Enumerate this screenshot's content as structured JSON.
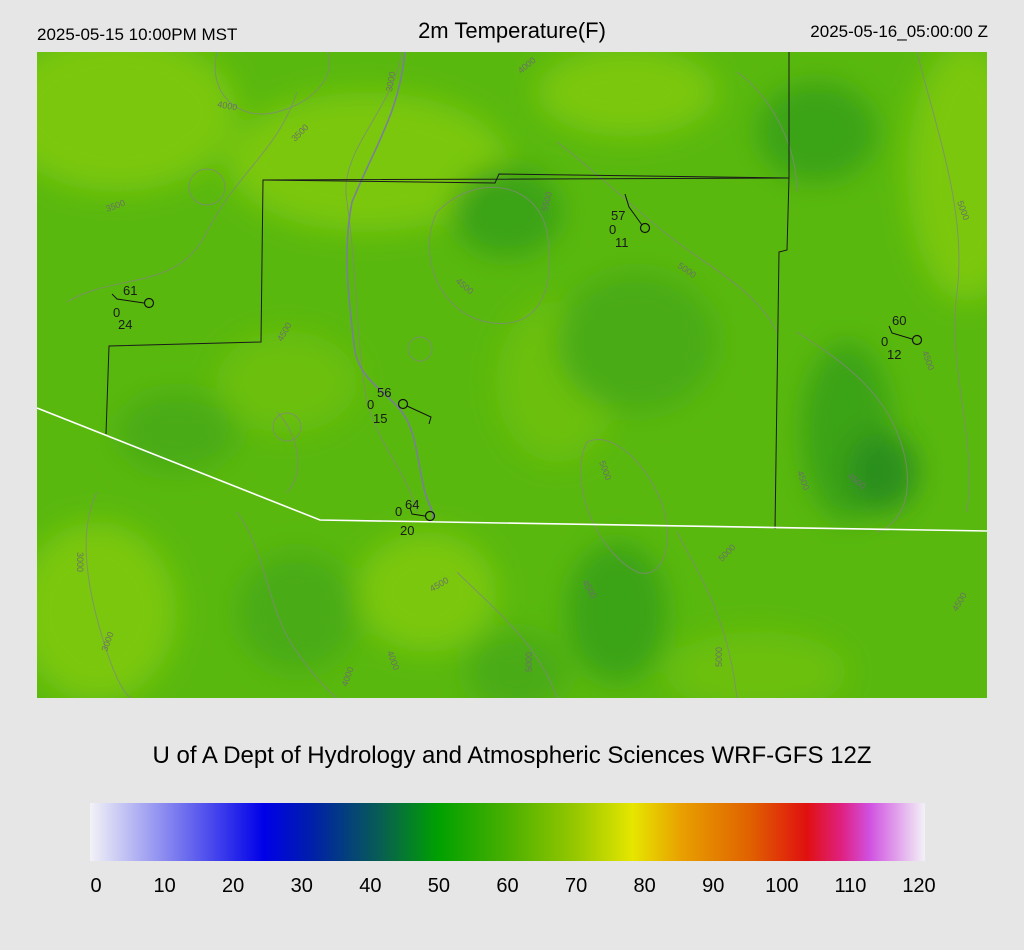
{
  "header": {
    "local_time": "2025-05-15 10:00PM MST",
    "title": "2m Temperature(F)",
    "utc_time": "2025-05-16_05:00:00 Z"
  },
  "credit": "U of A Dept of Hydrology and Atmospheric Sciences WRF-GFS 12Z",
  "map": {
    "fill_colors": {
      "base": "#59b80e",
      "light": "#7ac70c",
      "dark": "#3aa316",
      "darker": "#2b8f1e"
    },
    "contour_labels": [
      "3000",
      "3500",
      "4000",
      "4500",
      "5000",
      "5500"
    ],
    "stations": [
      {
        "temp": "61",
        "dew": "24",
        "cover": "0"
      },
      {
        "temp": "57",
        "dew": "11",
        "cover": "0"
      },
      {
        "temp": "60",
        "dew": "12",
        "cover": "0"
      },
      {
        "temp": "56",
        "dew": "15",
        "cover": "0"
      },
      {
        "temp": "64",
        "dew": "20",
        "cover": "0"
      }
    ]
  },
  "colorbar": {
    "ticks": [
      "0",
      "10",
      "20",
      "30",
      "40",
      "50",
      "60",
      "70",
      "80",
      "90",
      "100",
      "110",
      "120"
    ],
    "min": 0,
    "max": 120,
    "stops": [
      {
        "v": 0,
        "c": "#f2f2f7"
      },
      {
        "v": 25,
        "c": "#0000e8"
      },
      {
        "v": 32,
        "c": "#0020a8"
      },
      {
        "v": 42,
        "c": "#086050"
      },
      {
        "v": 50,
        "c": "#00a000"
      },
      {
        "v": 60,
        "c": "#4ab000"
      },
      {
        "v": 70,
        "c": "#98c800"
      },
      {
        "v": 78,
        "c": "#e6e600"
      },
      {
        "v": 85,
        "c": "#e8a000"
      },
      {
        "v": 95,
        "c": "#e06000"
      },
      {
        "v": 103,
        "c": "#e01010"
      },
      {
        "v": 108,
        "c": "#e02080"
      },
      {
        "v": 112,
        "c": "#d050e0"
      },
      {
        "v": 120,
        "c": "#f2f2f7"
      }
    ]
  }
}
